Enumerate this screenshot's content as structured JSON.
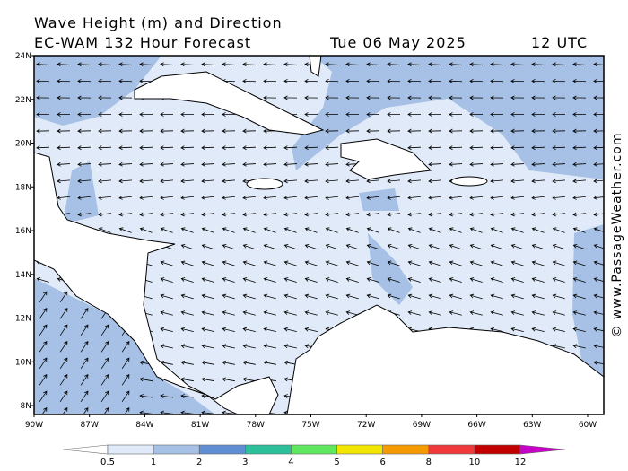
{
  "header": {
    "title": "Wave Height (m) and Direction",
    "model": "EC-WAM 132 Hour Forecast",
    "date": "Tue 06 May 2025",
    "time": "12 UTC"
  },
  "map": {
    "lat_labels": [
      "24N",
      "22N",
      "20N",
      "18N",
      "16N",
      "14N",
      "12N",
      "10N",
      "8N"
    ],
    "lon_labels": [
      "90W",
      "87W",
      "84W",
      "81W",
      "78W",
      "75W",
      "72W",
      "69W",
      "66W",
      "63W",
      "60W"
    ]
  },
  "colorbar": {
    "labels": [
      "0.5",
      "1",
      "2",
      "3",
      "4",
      "5",
      "6",
      "8",
      "10",
      "12"
    ],
    "colors": [
      "#e1eaf8",
      "#a6c1e5",
      "#5f8fd2",
      "#2bbf9a",
      "#5fe85f",
      "#f2e600",
      "#f59a00",
      "#ee3a3a",
      "#c00000"
    ],
    "below_color": "#ffffff",
    "above_color": "#c800c8"
  },
  "watermark": "© www.PassageWeather.com"
}
